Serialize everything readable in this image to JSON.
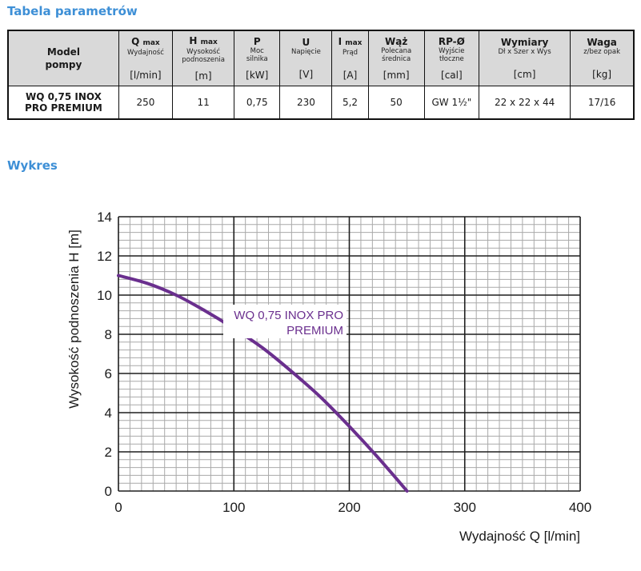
{
  "titles": {
    "params": "Tabela parametrów",
    "chart": "Wykres"
  },
  "table": {
    "model_header": [
      "Model",
      "pompy"
    ],
    "columns": [
      {
        "main": "Q",
        "sub_small": "max",
        "desc": [
          "Wydajność"
        ],
        "unit": "[l/min]"
      },
      {
        "main": "H",
        "sub_small": "max",
        "desc": [
          "Wysokość",
          "podnoszenia"
        ],
        "unit": "[m]"
      },
      {
        "main": "P",
        "sub_small": "",
        "desc": [
          "Moc",
          "silnika"
        ],
        "unit": "[kW]"
      },
      {
        "main": "U",
        "sub_small": "",
        "desc": [
          "Napięcie"
        ],
        "unit": "[V]"
      },
      {
        "main": "I",
        "sub_small": "max",
        "desc": [
          "Prąd"
        ],
        "unit": "[A]"
      },
      {
        "main": "Wąż",
        "sub_small": "",
        "desc": [
          "Polecana",
          "średnica"
        ],
        "unit": "[mm]"
      },
      {
        "main": "RP-Ø",
        "sub_small": "",
        "desc": [
          "Wyjście",
          "tłoczne"
        ],
        "unit": "[cal]"
      },
      {
        "main": "Wymiary",
        "sub_small": "",
        "desc": [
          "Dł x Szer x Wys"
        ],
        "unit": "[cm]"
      },
      {
        "main": "Waga",
        "sub_small": "",
        "desc": [
          "z/bez opak"
        ],
        "unit": "[kg]"
      }
    ],
    "row": {
      "model": [
        "WQ 0,75 INOX",
        "PRO PREMIUM"
      ],
      "values": [
        "250",
        "11",
        "0,75",
        "230",
        "5,2",
        "50",
        "GW 1½\"",
        "22 x 22 x 44",
        "17/16"
      ]
    }
  },
  "chart_data": {
    "type": "line",
    "title": "",
    "xlabel": "Wydajność Q [l/min]",
    "ylabel": "Wysokość podnoszenia H [m]",
    "xlim": [
      0,
      400
    ],
    "ylim": [
      0,
      14
    ],
    "x_ticks": [
      0,
      100,
      200,
      300,
      400
    ],
    "y_ticks": [
      0,
      2,
      4,
      6,
      8,
      10,
      12,
      14
    ],
    "grid": true,
    "series": [
      {
        "name": "WQ 0,75 INOX PRO PREMIUM",
        "label_lines": [
          "WQ 0,75 INOX PRO",
          "PREMIUM"
        ],
        "color": "#6a2f8e",
        "x": [
          0,
          25,
          50,
          75,
          100,
          125,
          150,
          175,
          200,
          225,
          250
        ],
        "y": [
          11,
          10.6,
          10.0,
          9.2,
          8.3,
          7.3,
          6.1,
          4.8,
          3.3,
          1.7,
          0
        ]
      }
    ]
  }
}
